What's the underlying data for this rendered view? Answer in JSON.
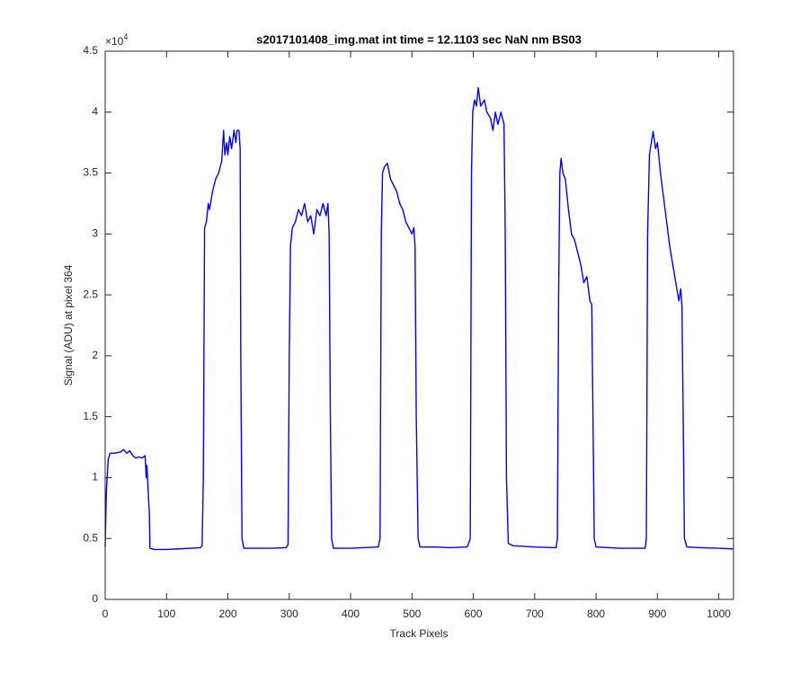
{
  "chart_data": {
    "type": "line",
    "title": "s2017101408_img.mat int time = 12.1103 sec  NaN nm BS03",
    "x_label": "Track Pixels",
    "y_label": "Signal (ADU) at pixel 364",
    "y_multiplier": {
      "base": "×10",
      "exponent": "4"
    },
    "color": "#0000ff",
    "xlim": [
      0,
      1024
    ],
    "ylim": [
      0,
      45000
    ],
    "xticks": [
      0,
      100,
      200,
      300,
      400,
      500,
      600,
      700,
      800,
      900,
      1000
    ],
    "yticks": [
      0,
      {
        "value": 5000,
        "label": "0.5"
      },
      {
        "value": 10000,
        "label": "1"
      },
      {
        "value": 15000,
        "label": "1.5"
      },
      {
        "value": 20000,
        "label": "2"
      },
      {
        "value": 25000,
        "label": "2.5"
      },
      {
        "value": 30000,
        "label": "3"
      },
      {
        "value": 35000,
        "label": "3.5"
      },
      {
        "value": 40000,
        "label": "4"
      },
      {
        "value": 45000,
        "label": "4.5"
      }
    ],
    "x": [
      0,
      2,
      5,
      8,
      15,
      25,
      30,
      35,
      40,
      45,
      50,
      55,
      60,
      65,
      67,
      68,
      70,
      72,
      73,
      80,
      100,
      120,
      140,
      155,
      158,
      160,
      162,
      165,
      168,
      170,
      175,
      180,
      185,
      190,
      193,
      195,
      198,
      200,
      203,
      206,
      210,
      213,
      215,
      218,
      220,
      221,
      223,
      226,
      250,
      270,
      295,
      298,
      300,
      302,
      305,
      310,
      315,
      320,
      325,
      330,
      335,
      340,
      345,
      350,
      355,
      360,
      363,
      365,
      367,
      369,
      372,
      400,
      420,
      445,
      448,
      450,
      452,
      455,
      460,
      465,
      470,
      475,
      480,
      485,
      490,
      495,
      500,
      503,
      505,
      507,
      510,
      513,
      540,
      560,
      590,
      595,
      597,
      599,
      602,
      605,
      608,
      612,
      618,
      622,
      628,
      632,
      636,
      640,
      645,
      650,
      652,
      654,
      657,
      665,
      700,
      735,
      737,
      739,
      741,
      743,
      746,
      750,
      755,
      760,
      765,
      770,
      775,
      780,
      785,
      790,
      793,
      795,
      797,
      800,
      840,
      880,
      882,
      884,
      887,
      890,
      893,
      897,
      900,
      905,
      910,
      915,
      920,
      925,
      930,
      935,
      938,
      940,
      942,
      944,
      948,
      970,
      1000,
      1023
    ],
    "values": [
      4300,
      9000,
      11500,
      12000,
      12000,
      12100,
      12300,
      12000,
      12200,
      11800,
      11600,
      11700,
      11600,
      11800,
      10000,
      11000,
      9000,
      7000,
      4200,
      4100,
      4100,
      4150,
      4200,
      4250,
      4400,
      10000,
      30500,
      31000,
      32500,
      32000,
      33500,
      34500,
      35000,
      36000,
      38500,
      36500,
      37500,
      36500,
      38000,
      37000,
      38500,
      37500,
      38500,
      38500,
      37000,
      20000,
      5000,
      4200,
      4200,
      4200,
      4250,
      4500,
      20000,
      29000,
      30500,
      31000,
      32000,
      31500,
      32500,
      31000,
      31500,
      30000,
      32000,
      31500,
      32500,
      31500,
      32500,
      30000,
      15000,
      5000,
      4200,
      4200,
      4250,
      4300,
      5000,
      30000,
      35000,
      35500,
      35800,
      34500,
      34000,
      33500,
      32500,
      32000,
      31000,
      30500,
      30000,
      30500,
      29000,
      15000,
      5000,
      4300,
      4300,
      4250,
      4300,
      5000,
      35000,
      40000,
      41000,
      40500,
      42000,
      40500,
      41000,
      40000,
      39500,
      38500,
      40000,
      39000,
      40000,
      39000,
      30000,
      10000,
      4600,
      4400,
      4300,
      4250,
      5000,
      25000,
      35000,
      36200,
      35000,
      34500,
      32000,
      30000,
      29500,
      28500,
      27500,
      26000,
      26500,
      24500,
      24200,
      15000,
      5000,
      4300,
      4200,
      4200,
      5000,
      30000,
      36500,
      37500,
      38400,
      37000,
      37500,
      35000,
      33000,
      31000,
      29000,
      27500,
      26000,
      24500,
      25500,
      24000,
      15000,
      5000,
      4300,
      4250,
      4200,
      4150
    ]
  }
}
